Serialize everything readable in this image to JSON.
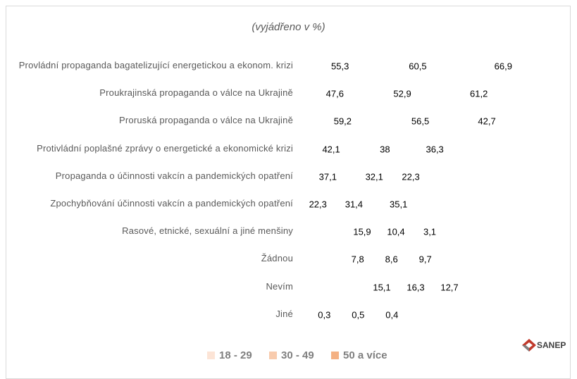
{
  "chart_data": {
    "type": "stacked_barh",
    "subtitle": "(vyjádřeno v %)",
    "categories": [
      "Provládní propaganda bagatelizující energetickou a ekonom. krizi",
      "Proukrajinská propaganda o válce na Ukrajině",
      "Proruská propaganda o válce na Ukrajině",
      "Protivládní poplašné zprávy o energetické a ekonomické krizi",
      "Propaganda o účinnosti vakcín a pandemických opatření",
      "Zpochybňování účinnosti vakcín a pandemických opatření",
      "Rasové, etnické, sexuální a jiné menšiny",
      "Žádnou",
      "Nevím",
      "Jiné"
    ],
    "series": [
      {
        "name": "18 - 29",
        "color": "#fce4d6",
        "point_colors": [
          "#fce4d6",
          "#fce4d6",
          "#fce4d6",
          "#fce4d6",
          "#fce4d6",
          "#fce4d6",
          "#fce4d6",
          "#fce4d6",
          "#eeeeee",
          "#fce4d6"
        ],
        "values": [
          55.3,
          47.6,
          59.2,
          42.1,
          37.1,
          22.3,
          15.9,
          7.8,
          15.1,
          0.3
        ]
      },
      {
        "name": "30 - 49",
        "color": "#f8cbad",
        "point_colors": [
          "#f8cbad",
          "#f8cbad",
          "#f8cbad",
          "#f8cbad",
          "#f8cbad",
          "#f8cbad",
          "#f8cbad",
          "#f8cbad",
          "#d6d6d6",
          "#f8cbad"
        ],
        "values": [
          60.5,
          52.9,
          56.5,
          38,
          32.1,
          31.4,
          10.4,
          8.6,
          16.3,
          0.5
        ]
      },
      {
        "name": "50 a více",
        "color": "#f4b183",
        "point_colors": [
          "#f4b183",
          "#f4b183",
          "#f4b183",
          "#f4b183",
          "#f4b183",
          "#f4b183",
          "#f4b183",
          "#f4b183",
          "#bdbdbd",
          "#f4b183"
        ],
        "values": [
          66.9,
          61.2,
          42.7,
          36.3,
          22.3,
          35.1,
          3.1,
          9.7,
          12.7,
          0.4
        ]
      }
    ],
    "value_labels": [
      [
        "55,3",
        "47,6",
        "59,2",
        "42,1",
        "37,1",
        "22,3",
        "15,9",
        "7,8",
        "15,1",
        "0,3"
      ],
      [
        "60,5",
        "52,9",
        "56,5",
        "38",
        "32,1",
        "31,4",
        "10,4",
        "8,6",
        "16,3",
        "0,5"
      ],
      [
        "66,9",
        "61,2",
        "42,7",
        "36,3",
        "22,3",
        "35,1",
        "3,1",
        "9,7",
        "12,7",
        "0,4"
      ]
    ],
    "legend": "bottom",
    "logo": "SANEP"
  }
}
